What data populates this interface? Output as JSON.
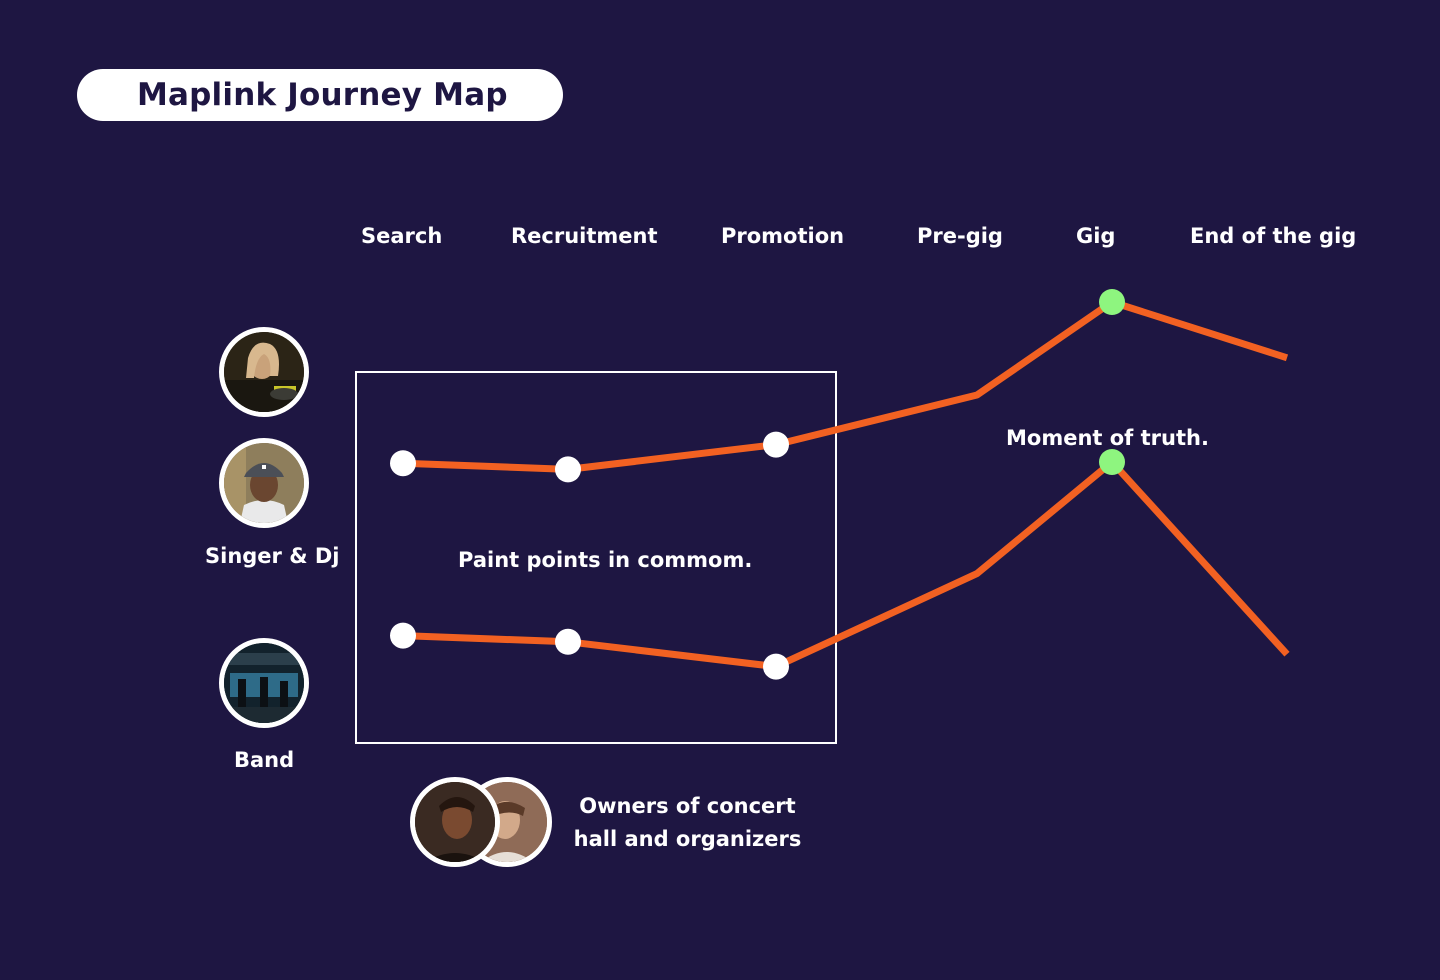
{
  "title": "Maplink Journey Map",
  "stages": [
    "Search",
    "Recruitment",
    "Promotion",
    "Pre-gig",
    "Gig",
    "End of the gig"
  ],
  "personas": {
    "singer_dj": "Singer & Dj",
    "band": "Band",
    "owners_line1": "Owners of concert",
    "owners_line2": "hall and organizers"
  },
  "annotations": {
    "common": "Paint points in commom.",
    "truth": "Moment of truth."
  },
  "colors": {
    "background": "#1e1642",
    "line": "#f26122",
    "point": "#ffffff",
    "highlight": "#8ef57f"
  },
  "chart_data": {
    "type": "line",
    "categories": [
      "Search",
      "Recruitment",
      "Promotion",
      "Pre-gig",
      "Gig",
      "End of the gig"
    ],
    "series": [
      {
        "name": "Singer & Dj",
        "values": [
          3.9,
          3.8,
          4.2,
          5.0,
          6.5,
          5.6
        ],
        "markers": [
          0,
          1,
          2
        ],
        "highlight": [
          4
        ]
      },
      {
        "name": "Band",
        "values": [
          1.2,
          1.1,
          0.7,
          2.2,
          4.0,
          0.9
        ],
        "markers": [
          0,
          1,
          2
        ],
        "highlight": [
          4
        ]
      }
    ]
  }
}
